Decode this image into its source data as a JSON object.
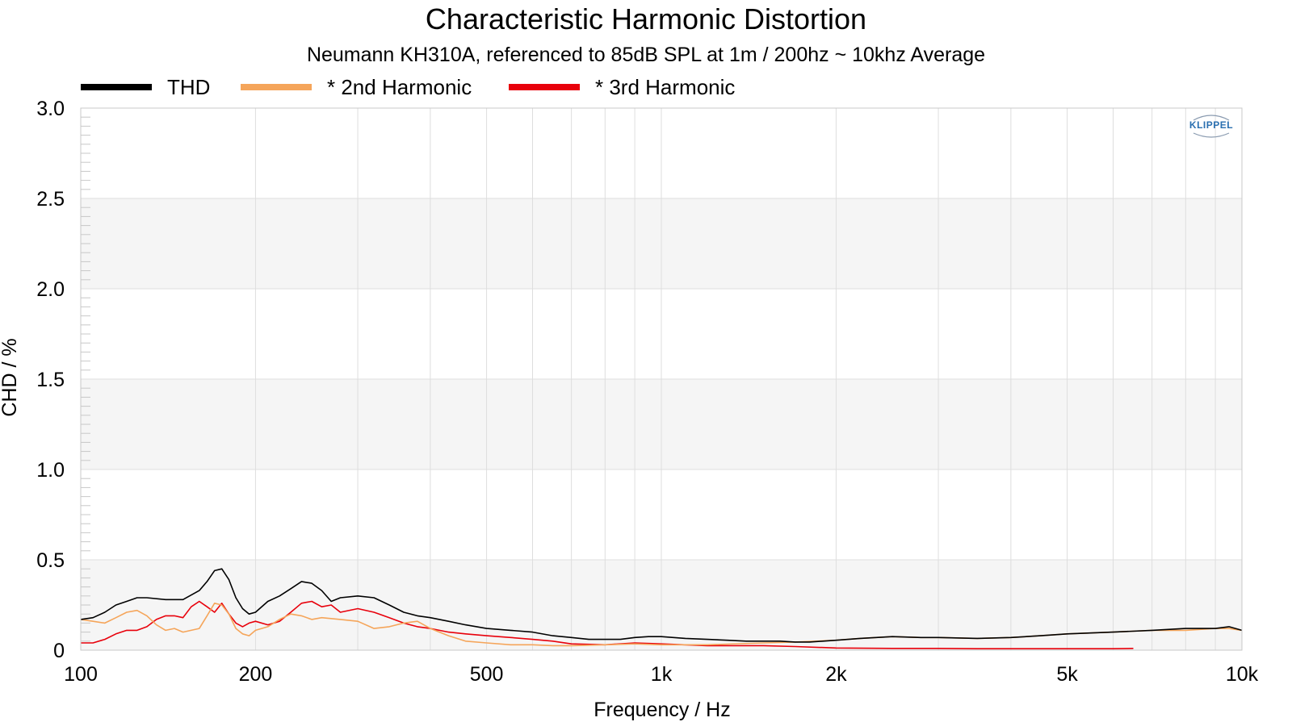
{
  "chart_data": {
    "type": "line",
    "title": "Characteristic Harmonic Distortion",
    "subtitle": "Neumann KH310A, referenced to 85dB SPL at 1m / 200hz ~ 10khz Average",
    "xlabel": "Frequency / Hz",
    "ylabel": "CHD / %",
    "xscale": "log",
    "xlim": [
      100,
      10000
    ],
    "ylim": [
      0,
      3.0
    ],
    "xticks": [
      100,
      200,
      500,
      1000,
      2000,
      5000,
      10000
    ],
    "xtick_labels": [
      "100",
      "200",
      "500",
      "1k",
      "2k",
      "5k",
      "10k"
    ],
    "yticks": [
      0,
      0.5,
      1.0,
      1.5,
      2.0,
      2.5,
      3.0
    ],
    "ytick_labels": [
      "0",
      "0.5",
      "1.0",
      "1.5",
      "2.0",
      "2.5",
      "3.0"
    ],
    "grid": true,
    "legend_position": "top-left",
    "watermark": "KLIPPEL",
    "series": [
      {
        "name": "THD",
        "color": "#000000",
        "x": [
          100,
          105,
          110,
          115,
          120,
          125,
          130,
          140,
          150,
          160,
          165,
          170,
          175,
          180,
          185,
          190,
          195,
          200,
          210,
          220,
          230,
          240,
          250,
          260,
          270,
          280,
          300,
          320,
          340,
          360,
          380,
          400,
          430,
          460,
          500,
          550,
          600,
          650,
          700,
          750,
          800,
          850,
          900,
          950,
          1000,
          1100,
          1200,
          1300,
          1400,
          1500,
          1600,
          1700,
          1800,
          1900,
          2000,
          2200,
          2500,
          2800,
          3000,
          3500,
          4000,
          4500,
          5000,
          6000,
          7000,
          8000,
          9000,
          9500,
          10000
        ],
        "y": [
          0.17,
          0.18,
          0.21,
          0.25,
          0.27,
          0.29,
          0.29,
          0.28,
          0.28,
          0.33,
          0.38,
          0.44,
          0.45,
          0.39,
          0.29,
          0.23,
          0.2,
          0.21,
          0.27,
          0.3,
          0.34,
          0.38,
          0.37,
          0.33,
          0.27,
          0.29,
          0.3,
          0.29,
          0.25,
          0.21,
          0.19,
          0.18,
          0.16,
          0.14,
          0.12,
          0.11,
          0.1,
          0.08,
          0.07,
          0.06,
          0.06,
          0.06,
          0.07,
          0.075,
          0.075,
          0.065,
          0.06,
          0.055,
          0.05,
          0.05,
          0.05,
          0.045,
          0.045,
          0.05,
          0.055,
          0.065,
          0.075,
          0.07,
          0.07,
          0.065,
          0.07,
          0.08,
          0.09,
          0.1,
          0.11,
          0.12,
          0.12,
          0.13,
          0.11
        ]
      },
      {
        "name": "* 2nd Harmonic",
        "color": "#F5A55A",
        "x": [
          100,
          105,
          110,
          115,
          120,
          125,
          130,
          135,
          140,
          145,
          150,
          160,
          165,
          170,
          175,
          180,
          185,
          190,
          195,
          200,
          210,
          220,
          230,
          240,
          250,
          260,
          280,
          300,
          320,
          340,
          360,
          380,
          400,
          430,
          460,
          500,
          550,
          600,
          650,
          700,
          800,
          900,
          1000,
          1200,
          1500,
          1700,
          2000,
          2200,
          2500,
          2800,
          3000,
          3500,
          4000,
          4500,
          5000,
          6000,
          7000,
          8000,
          9000,
          9500,
          10000
        ],
        "y": [
          0.17,
          0.16,
          0.15,
          0.18,
          0.21,
          0.22,
          0.19,
          0.14,
          0.11,
          0.12,
          0.1,
          0.12,
          0.19,
          0.26,
          0.25,
          0.2,
          0.12,
          0.09,
          0.08,
          0.11,
          0.13,
          0.17,
          0.2,
          0.19,
          0.17,
          0.18,
          0.17,
          0.16,
          0.12,
          0.13,
          0.15,
          0.16,
          0.12,
          0.08,
          0.05,
          0.04,
          0.03,
          0.03,
          0.025,
          0.025,
          0.03,
          0.035,
          0.03,
          0.03,
          0.04,
          0.045,
          0.055,
          0.065,
          0.075,
          0.07,
          0.07,
          0.065,
          0.07,
          0.08,
          0.09,
          0.1,
          0.11,
          0.11,
          0.12,
          0.12,
          0.11
        ]
      },
      {
        "name": "* 3rd Harmonic",
        "color": "#E8000B",
        "x": [
          100,
          105,
          110,
          115,
          120,
          125,
          130,
          135,
          140,
          145,
          150,
          155,
          160,
          165,
          170,
          175,
          180,
          185,
          190,
          195,
          200,
          210,
          220,
          230,
          240,
          250,
          260,
          270,
          280,
          300,
          320,
          340,
          360,
          380,
          400,
          430,
          460,
          500,
          550,
          600,
          650,
          700,
          800,
          900,
          1000,
          1200,
          1500,
          1700,
          2000,
          2500,
          3000,
          3500,
          4000,
          4500,
          5000,
          6000,
          6500
        ],
        "y": [
          0.04,
          0.04,
          0.06,
          0.09,
          0.11,
          0.11,
          0.13,
          0.17,
          0.19,
          0.19,
          0.18,
          0.24,
          0.27,
          0.24,
          0.21,
          0.26,
          0.2,
          0.15,
          0.13,
          0.15,
          0.16,
          0.14,
          0.16,
          0.21,
          0.26,
          0.27,
          0.24,
          0.25,
          0.21,
          0.23,
          0.21,
          0.18,
          0.15,
          0.13,
          0.12,
          0.1,
          0.09,
          0.08,
          0.07,
          0.06,
          0.05,
          0.035,
          0.03,
          0.04,
          0.035,
          0.025,
          0.025,
          0.02,
          0.012,
          0.01,
          0.01,
          0.008,
          0.008,
          0.008,
          0.008,
          0.008,
          0.01
        ]
      }
    ]
  }
}
